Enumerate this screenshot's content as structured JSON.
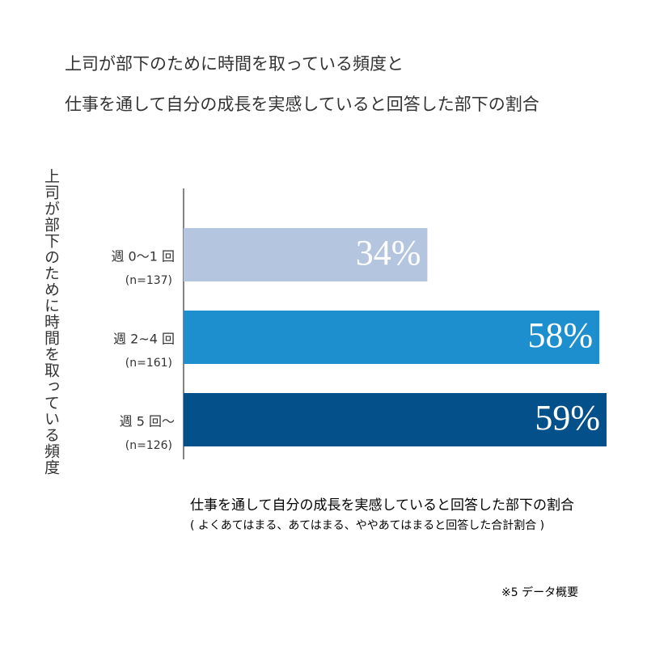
{
  "chart_data": {
    "type": "bar",
    "title": [
      "上司が部下のために時間を取っている頻度と",
      "仕事を通して自分の成長を実感していると回答した部下の割合"
    ],
    "y_label": "上司が部下のために時間を取っている頻度",
    "categories": [
      "週 0〜1 回",
      "週 2~4 回",
      "週 5 回〜"
    ],
    "category_notes": [
      "(n=137)",
      "(n=161)",
      "(n=126)"
    ],
    "values": [
      34,
      58,
      59
    ],
    "value_labels": [
      "34%",
      "58%",
      "59%"
    ],
    "colors": [
      "#b4c5e0",
      "#1e8fce",
      "#04508a"
    ],
    "x_label": "仕事を通して自分の成長を実感していると回答した部下の割合",
    "x_note": "( よくあてはまる、あてはまる、ややあてはまると回答した合計割合 )",
    "footnote": "※5 データ概要"
  }
}
